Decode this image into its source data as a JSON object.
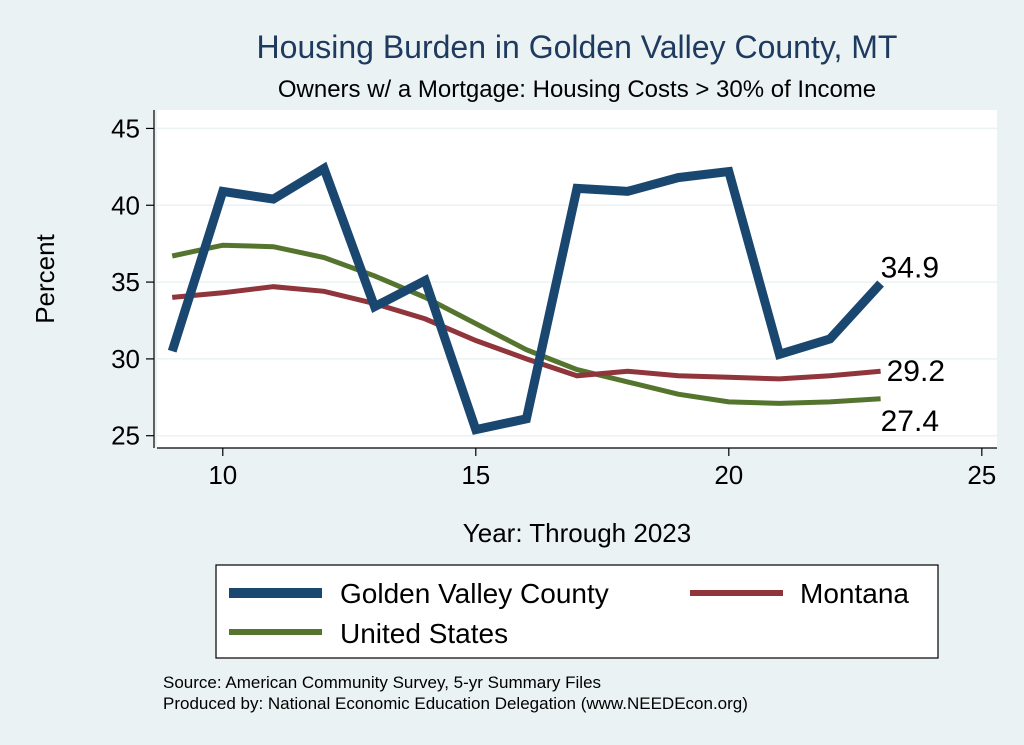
{
  "title": "Housing Burden in Golden Valley County, MT",
  "subtitle": "Owners w/ a Mortgage: Housing Costs > 30% of Income",
  "source_line": "Source: American Community Survey, 5-yr Summary Files",
  "produced_line": "Produced by: National Economic Education Delegation (www.NEEDEcon.org)",
  "colors": {
    "background": "#eaf2f3",
    "plot_background": "#ffffff",
    "grid": "#eaf2f3",
    "title": "#1e3a5f"
  },
  "chart_data": {
    "type": "line",
    "title": "Housing Burden in Golden Valley County, MT",
    "subtitle": "Owners w/ a Mortgage: Housing Costs > 30% of Income",
    "xlabel": "Year: Through 2023",
    "ylabel": "Percent",
    "xlim": [
      8.7,
      25.3
    ],
    "ylim": [
      24.2,
      46.2
    ],
    "xticks": [
      10,
      15,
      20,
      25
    ],
    "yticks": [
      25,
      30,
      35,
      40,
      45
    ],
    "grid": true,
    "legend_position": "bottom",
    "x": [
      9,
      10,
      11,
      12,
      13,
      14,
      15,
      16,
      17,
      18,
      19,
      20,
      21,
      22,
      23
    ],
    "series": [
      {
        "name": "Golden Valley County",
        "color": "#1a476f",
        "width": 9,
        "values": [
          30.5,
          40.9,
          40.4,
          42.4,
          33.4,
          35.1,
          25.4,
          26.1,
          41.1,
          40.9,
          41.8,
          42.2,
          30.3,
          31.3,
          34.9
        ],
        "end_label": "34.9"
      },
      {
        "name": "Montana",
        "color": "#90353b",
        "width": 5,
        "values": [
          34.0,
          34.3,
          34.7,
          34.4,
          33.6,
          32.6,
          31.2,
          30.0,
          28.9,
          29.2,
          28.9,
          28.8,
          28.7,
          28.9,
          29.2
        ],
        "end_label": "29.2"
      },
      {
        "name": "United States",
        "color": "#55752f",
        "width": 5,
        "values": [
          36.7,
          37.4,
          37.3,
          36.6,
          35.4,
          34.0,
          32.3,
          30.6,
          29.3,
          28.5,
          27.7,
          27.2,
          27.1,
          27.2,
          27.4
        ],
        "end_label": "27.4"
      }
    ]
  }
}
